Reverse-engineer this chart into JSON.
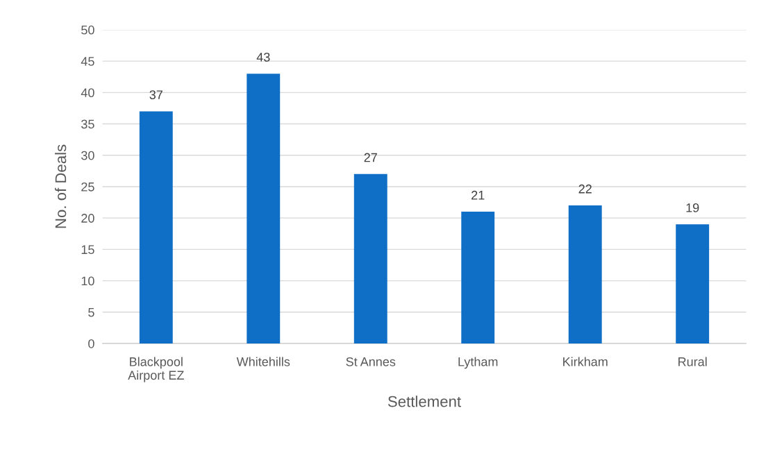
{
  "chart_data": {
    "type": "bar",
    "xlabel": "Settlement",
    "ylabel": "No. of Deals",
    "categories": [
      "Blackpool Airport EZ",
      "Whitehills",
      "St Annes",
      "Lytham",
      "Kirkham",
      "Rural"
    ],
    "values": [
      37,
      43,
      27,
      21,
      22,
      19
    ],
    "color": "#0f6fc6",
    "ylim": [
      0,
      50
    ],
    "yticks": [
      0,
      5,
      10,
      15,
      20,
      25,
      30,
      35,
      40,
      45,
      50
    ],
    "grid": "y",
    "data_labels": true
  }
}
